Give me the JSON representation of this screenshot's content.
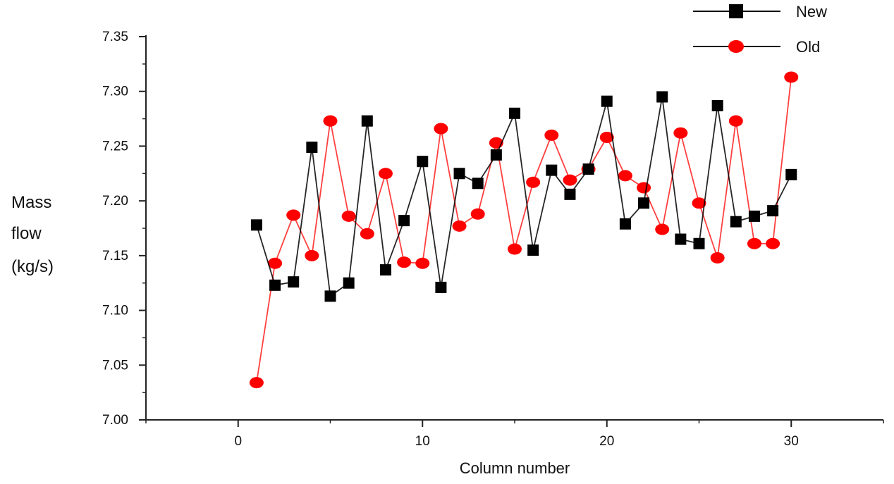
{
  "chart_data": {
    "type": "line",
    "title": "",
    "xlabel": "Column number",
    "ylabel_lines": [
      "Mass",
      "flow",
      "(kg/s)"
    ],
    "xlim": [
      -5,
      35
    ],
    "ylim": [
      7.0,
      7.35
    ],
    "x_ticks": [
      0,
      10,
      20,
      30
    ],
    "x_tick_labels": [
      "0",
      "10",
      "20",
      "30"
    ],
    "y_ticks": [
      7.0,
      7.05,
      7.1,
      7.15,
      7.2,
      7.25,
      7.3,
      7.35
    ],
    "y_tick_labels": [
      "7.00",
      "7.05",
      "7.10",
      "7.15",
      "7.20",
      "7.25",
      "7.30",
      "7.35"
    ],
    "grid": false,
    "legend_position": "top-right",
    "series": [
      {
        "name": "New",
        "color": "#000000",
        "marker": "square",
        "x": [
          1,
          2,
          3,
          4,
          5,
          6,
          7,
          8,
          9,
          10,
          11,
          12,
          13,
          14,
          15,
          16,
          17,
          18,
          19,
          20,
          21,
          22,
          23,
          24,
          25,
          26,
          27,
          28,
          29,
          30
        ],
        "y": [
          7.178,
          7.123,
          7.126,
          7.249,
          7.113,
          7.125,
          7.273,
          7.137,
          7.182,
          7.236,
          7.121,
          7.225,
          7.216,
          7.242,
          7.28,
          7.155,
          7.228,
          7.206,
          7.229,
          7.291,
          7.179,
          7.198,
          7.295,
          7.165,
          7.161,
          7.287,
          7.181,
          7.186,
          7.191,
          7.224
        ]
      },
      {
        "name": "Old",
        "color": "#ff0000",
        "marker": "circle",
        "x": [
          1,
          2,
          3,
          4,
          5,
          6,
          7,
          8,
          9,
          10,
          11,
          12,
          13,
          14,
          15,
          16,
          17,
          18,
          19,
          20,
          21,
          22,
          23,
          24,
          25,
          26,
          27,
          28,
          29,
          30
        ],
        "y": [
          7.034,
          7.143,
          7.187,
          7.15,
          7.273,
          7.186,
          7.17,
          7.225,
          7.144,
          7.143,
          7.266,
          7.177,
          7.188,
          7.253,
          7.156,
          7.217,
          7.26,
          7.219,
          7.229,
          7.258,
          7.223,
          7.212,
          7.174,
          7.262,
          7.198,
          7.148,
          7.273,
          7.161,
          7.161,
          7.313
        ]
      }
    ]
  }
}
